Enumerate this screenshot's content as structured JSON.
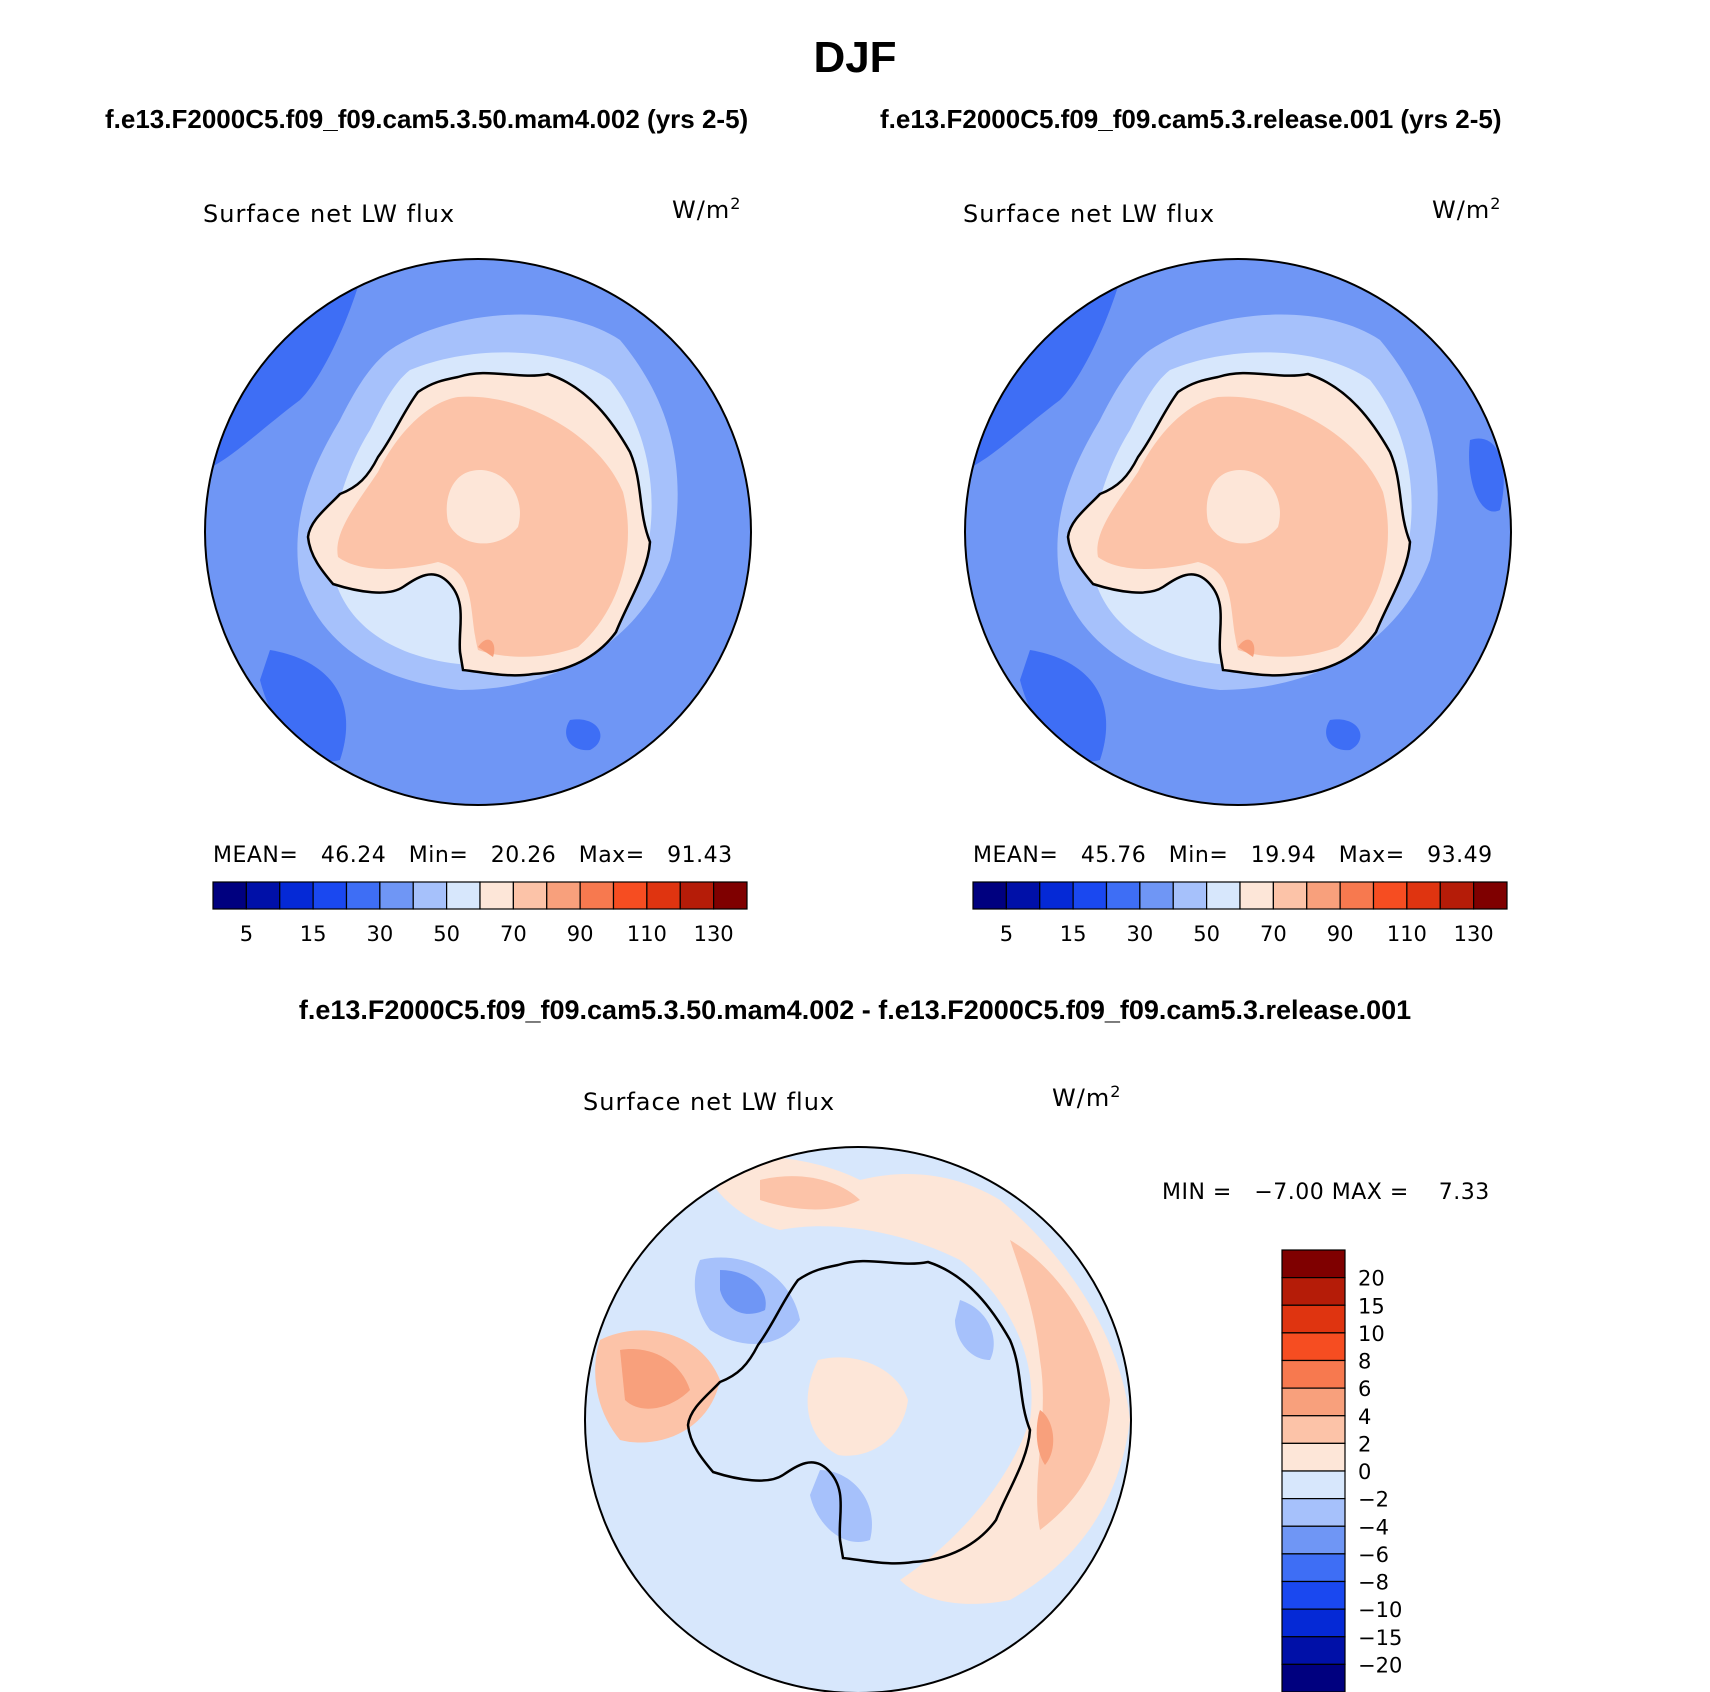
{
  "title": "DJF",
  "panels": [
    {
      "case_title": "f.e13.F2000C5.f09_f09.cam5.3.50.mam4.002 (yrs 2-5)",
      "variable": "Surface net LW flux",
      "units": "W/m",
      "units_exp": "2",
      "stats": {
        "mean_label": "MEAN=",
        "mean": "46.24",
        "min_label": "Min=",
        "min": "20.26",
        "max_label": "Max=",
        "max": "91.43"
      }
    },
    {
      "case_title": "f.e13.F2000C5.f09_f09.cam5.3.release.001 (yrs 2-5)",
      "variable": "Surface net LW flux",
      "units": "W/m",
      "units_exp": "2",
      "stats": {
        "mean_label": "MEAN=",
        "mean": "45.76",
        "min_label": "Min=",
        "min": "19.94",
        "max_label": "Max=",
        "max": "93.49"
      }
    }
  ],
  "difference": {
    "title": "f.e13.F2000C5.f09_f09.cam5.3.50.mam4.002 - f.e13.F2000C5.f09_f09.cam5.3.release.001",
    "variable": "Surface net LW flux",
    "units": "W/m",
    "units_exp": "2",
    "stats_text": "MIN =   −7.00 MAX =    7.33"
  },
  "colorbar_main": {
    "colors": [
      "#00007f",
      "#0010a8",
      "#0529d6",
      "#1a48f0",
      "#3e6ef5",
      "#6f96f5",
      "#a6c1fb",
      "#d7e7fc",
      "#fde6d8",
      "#fcc3a8",
      "#f8a07c",
      "#f7794f",
      "#f64d21",
      "#df3410",
      "#b51c08",
      "#7f0000"
    ],
    "tick_labels": [
      "5",
      "15",
      "30",
      "50",
      "70",
      "90",
      "110",
      "130"
    ]
  },
  "colorbar_diff": {
    "colors": [
      "#00007f",
      "#0010a8",
      "#0529d6",
      "#1a48f0",
      "#3e6ef5",
      "#6f96f5",
      "#a6c1fb",
      "#d7e7fc",
      "#fde6d8",
      "#fcc3a8",
      "#f8a07c",
      "#f7794f",
      "#f64d21",
      "#df3410",
      "#b51c08",
      "#7f0000"
    ],
    "tick_labels": [
      "20",
      "15",
      "10",
      "8",
      "6",
      "4",
      "2",
      "0",
      "−2",
      "−4",
      "−6",
      "−8",
      "−10",
      "−15",
      "−20"
    ]
  },
  "map_colors": {
    "ocean_mid": "#6f96f5",
    "ocean_dark": "#3e6ef5",
    "ocean_light": "#a6c1fb",
    "coast_pale": "#d7e7fc",
    "land": "#fcc3a8",
    "land_light": "#fde6d8",
    "land_warm": "#f8a07c",
    "diff_neg": "#d7e7fc",
    "diff_neg2": "#a6c1fb",
    "diff_neg3": "#6f96f5",
    "diff_pos": "#fde6d8",
    "diff_pos2": "#fcc3a8",
    "diff_pos3": "#f8a07c"
  }
}
